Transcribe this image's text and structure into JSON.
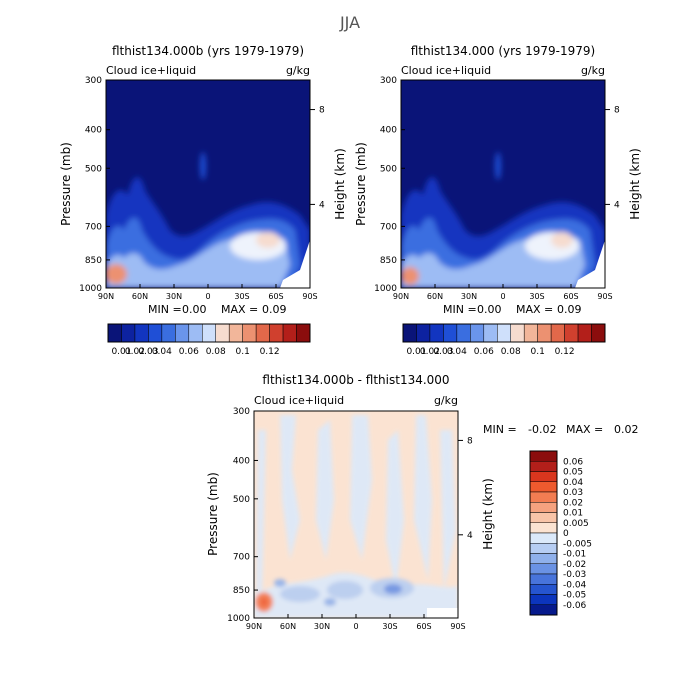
{
  "chart_data": [
    {
      "type": "heatmap",
      "title": "flthist134.000b (yrs 1979-1979)",
      "variable": "Cloud ice+liquid",
      "units": "g/kg",
      "ylabel": "Pressure (mb)",
      "ylabel_right": "Height (km)",
      "x_ticks": [
        "90N",
        "60N",
        "30N",
        "0",
        "30S",
        "60S",
        "90S"
      ],
      "y_ticks": [
        "300",
        "400",
        "500",
        "700",
        "850",
        "1000"
      ],
      "height_ticks": [
        "8",
        "4"
      ],
      "stats": {
        "min_label": "MIN =",
        "min": "0.00",
        "max_label": "MAX =",
        "max": "0.09"
      },
      "colorbar": {
        "labels": [
          "0.01",
          "0.02",
          "0.03",
          "0.04",
          "0.06",
          "0.08",
          "0.1",
          "0.12"
        ],
        "colors": [
          "#0a1478",
          "#0d22a0",
          "#1235c0",
          "#1f4fd6",
          "#3a6ee0",
          "#6a95ec",
          "#9dbcf4",
          "#cfe0fb",
          "#f6dccf",
          "#f2b69a",
          "#ec9171",
          "#e2684a",
          "#d0402e",
          "#b31f1a",
          "#8b0d0d"
        ]
      }
    },
    {
      "type": "heatmap",
      "title": "flthist134.000 (yrs 1979-1979)",
      "variable": "Cloud ice+liquid",
      "units": "g/kg",
      "ylabel": "Pressure (mb)",
      "ylabel_right": "Height (km)",
      "x_ticks": [
        "90N",
        "60N",
        "30N",
        "0",
        "30S",
        "60S",
        "90S"
      ],
      "y_ticks": [
        "300",
        "400",
        "500",
        "700",
        "850",
        "1000"
      ],
      "height_ticks": [
        "8",
        "4"
      ],
      "stats": {
        "min_label": "MIN =",
        "min": "0.00",
        "max_label": "MAX =",
        "max": "0.09"
      },
      "colorbar": {
        "labels": [
          "0.01",
          "0.02",
          "0.03",
          "0.04",
          "0.06",
          "0.08",
          "0.1",
          "0.12"
        ],
        "colors": [
          "#0a1478",
          "#0d22a0",
          "#1235c0",
          "#1f4fd6",
          "#3a6ee0",
          "#6a95ec",
          "#9dbcf4",
          "#cfe0fb",
          "#f6dccf",
          "#f2b69a",
          "#ec9171",
          "#e2684a",
          "#d0402e",
          "#b31f1a",
          "#8b0d0d"
        ]
      }
    },
    {
      "type": "heatmap",
      "title": "flthist134.000b - flthist134.000",
      "variable": "Cloud ice+liquid",
      "units": "g/kg",
      "ylabel": "Pressure (mb)",
      "ylabel_right": "Height (km)",
      "x_ticks": [
        "90N",
        "60N",
        "30N",
        "0",
        "30S",
        "60S",
        "90S"
      ],
      "y_ticks": [
        "300",
        "400",
        "500",
        "700",
        "850",
        "1000"
      ],
      "height_ticks": [
        "8",
        "4"
      ],
      "stats": {
        "min_label": "MIN =",
        "min": "-0.02",
        "max_label": "MAX =",
        "max": "0.02"
      },
      "colorbar": {
        "labels": [
          "0.06",
          "0.05",
          "0.04",
          "0.03",
          "0.02",
          "0.01",
          "0.005",
          "0",
          "-0.005",
          "-0.01",
          "-0.02",
          "-0.03",
          "-0.04",
          "-0.05",
          "-0.06"
        ],
        "colors": [
          "#8b0d0d",
          "#b31f1a",
          "#d9361e",
          "#ee5a2e",
          "#f27d52",
          "#f5a27f",
          "#f8c4a8",
          "#fbe3d2",
          "#dbe9fa",
          "#b6cdf3",
          "#8fb0eb",
          "#6a92e4",
          "#4874db",
          "#2655cf",
          "#0c35bd",
          "#061a8c"
        ]
      }
    }
  ],
  "season": "JJA"
}
